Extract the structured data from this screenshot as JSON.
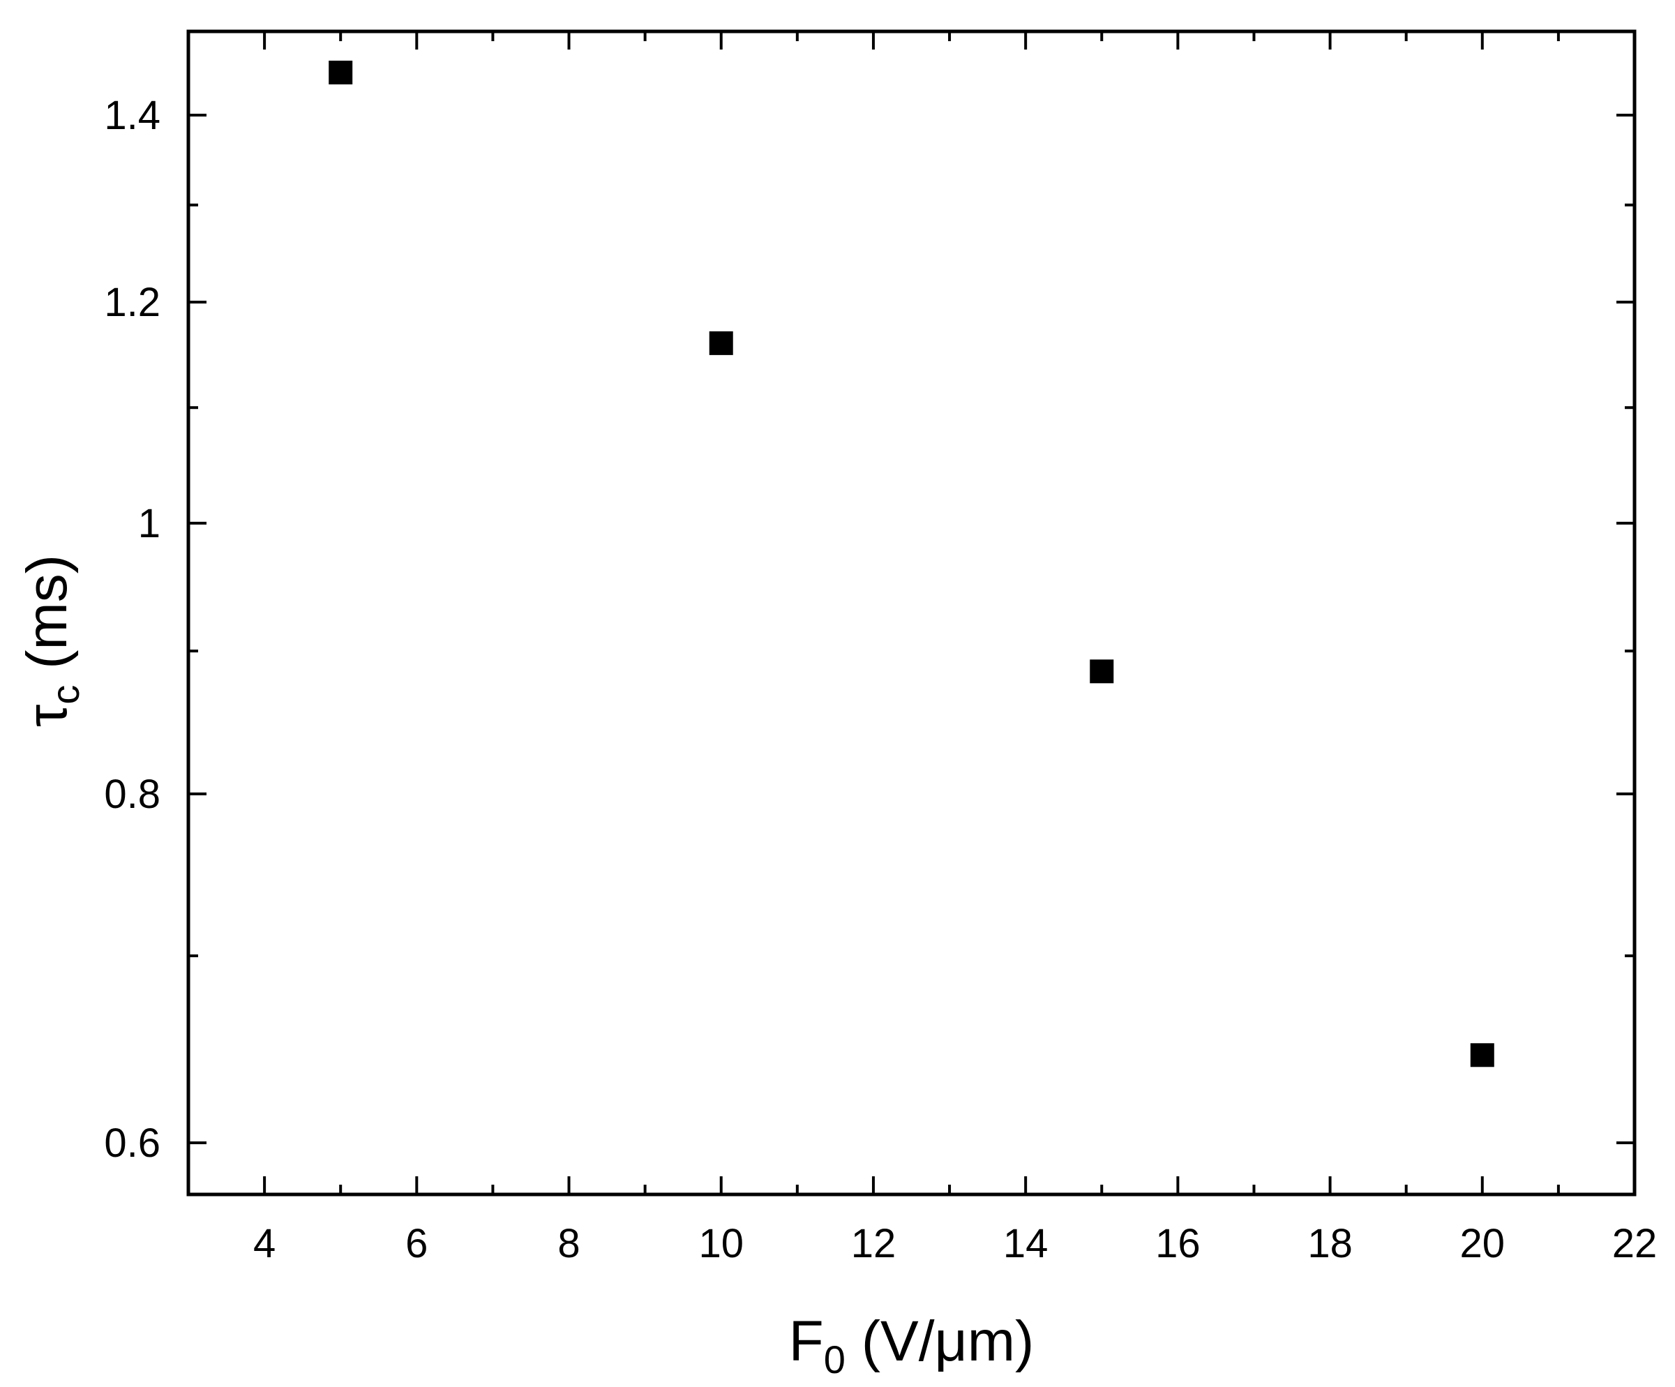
{
  "chart_data": {
    "type": "scatter",
    "title": "",
    "xlabel": {
      "main": "F",
      "sub": "0",
      "rest": " (V/μm)"
    },
    "ylabel": {
      "main": "τ",
      "sub": "c",
      "rest": " (ms)"
    },
    "xlim": [
      3,
      22
    ],
    "ylim": [
      0.575,
      1.5
    ],
    "y_scale": "log",
    "x_ticks": [
      4,
      6,
      8,
      10,
      12,
      14,
      16,
      18,
      20,
      22
    ],
    "x_tick_labels": [
      "4",
      "6",
      "8",
      "10",
      "12",
      "14",
      "16",
      "18",
      "20",
      "22"
    ],
    "y_ticks": [
      0.6,
      0.8,
      1.0,
      1.2,
      1.4
    ],
    "y_tick_labels": [
      "0.6",
      "0.8",
      "1",
      "1.2",
      "1.4"
    ],
    "y_minor_ticks": [
      0.7,
      0.9,
      1.1,
      1.3,
      1.5
    ],
    "grid": false,
    "marker": "square",
    "marker_color": "#000000",
    "points": [
      {
        "x": 5,
        "y": 1.45
      },
      {
        "x": 10,
        "y": 1.16
      },
      {
        "x": 15,
        "y": 0.885
      },
      {
        "x": 20,
        "y": 0.645
      }
    ]
  }
}
